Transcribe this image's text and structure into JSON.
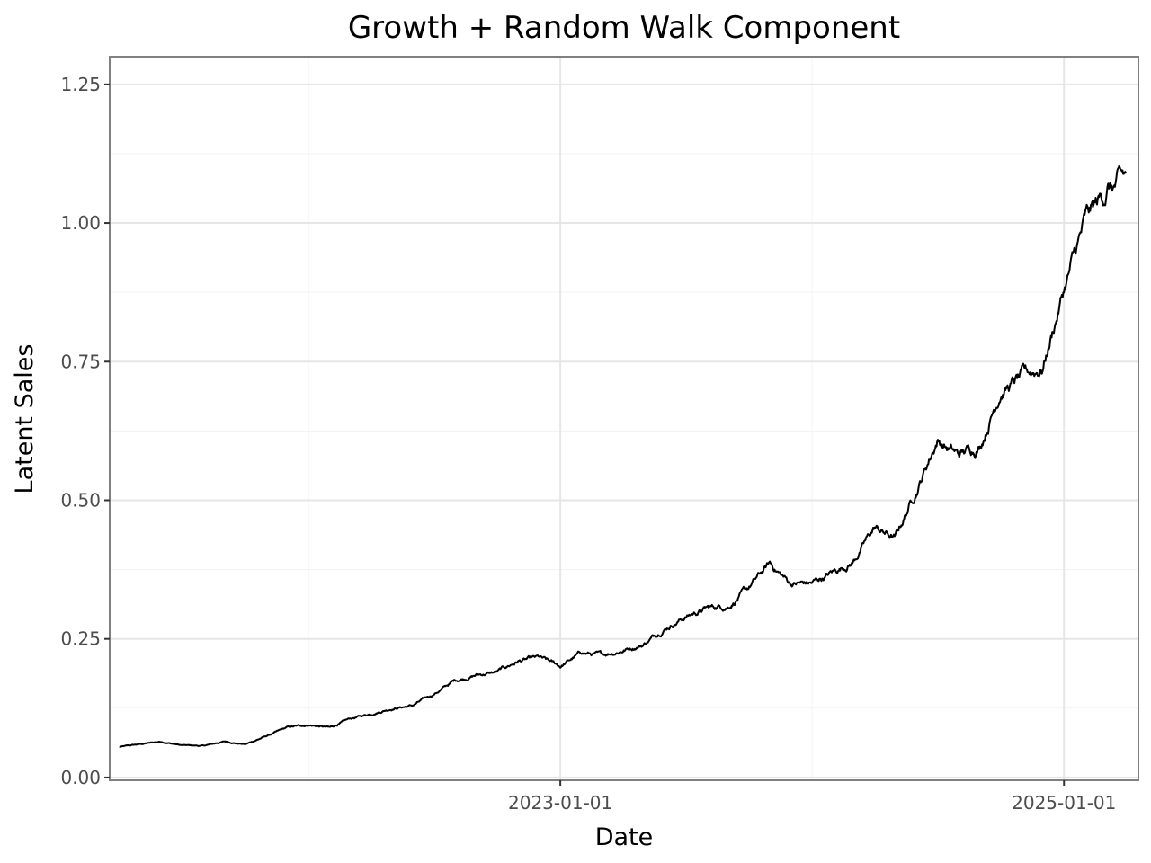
{
  "chart_data": {
    "type": "line",
    "title": "Growth + Random Walk Component",
    "xlabel": "Date",
    "ylabel": "Latent Sales",
    "grid": true,
    "legend": "none",
    "x_range": [
      "2021-03-18",
      "2025-04-19"
    ],
    "x_ticks": [
      "2023-01-01",
      "2025-01-01"
    ],
    "ylim": [
      -0.005,
      1.3
    ],
    "y_ticks": [
      "0.00",
      "0.25",
      "0.50",
      "0.75",
      "1.00",
      "1.25"
    ],
    "line_color": "#000000",
    "series": [
      {
        "x": [
          "2021-04-01",
          "2021-05-01",
          "2021-06-01",
          "2021-07-01",
          "2021-08-01",
          "2021-09-01",
          "2021-10-01",
          "2021-11-01",
          "2021-12-01",
          "2022-01-01",
          "2022-02-01",
          "2022-03-01",
          "2022-04-01",
          "2022-05-01",
          "2022-06-01",
          "2022-07-01",
          "2022-08-01",
          "2022-09-01",
          "2022-10-01",
          "2022-11-01",
          "2022-12-01",
          "2023-01-01",
          "2023-02-01",
          "2023-03-01",
          "2023-04-01",
          "2023-05-01",
          "2023-06-01",
          "2023-07-01",
          "2023-08-01",
          "2023-09-01",
          "2023-10-01",
          "2023-11-01",
          "2023-12-01",
          "2024-01-01",
          "2024-02-01",
          "2024-03-01",
          "2024-04-01",
          "2024-05-01",
          "2024-06-01",
          "2024-07-01",
          "2024-08-01",
          "2024-09-01",
          "2024-10-01",
          "2024-11-01",
          "2024-12-01",
          "2025-01-01",
          "2025-02-01",
          "2025-03-01",
          "2025-03-15",
          "2025-04-01"
        ],
        "values": [
          0.055,
          0.06,
          0.065,
          0.058,
          0.057,
          0.065,
          0.06,
          0.075,
          0.09,
          0.095,
          0.09,
          0.105,
          0.115,
          0.125,
          0.13,
          0.15,
          0.175,
          0.185,
          0.19,
          0.21,
          0.215,
          0.2,
          0.225,
          0.22,
          0.23,
          0.24,
          0.27,
          0.29,
          0.305,
          0.31,
          0.34,
          0.385,
          0.35,
          0.35,
          0.37,
          0.39,
          0.45,
          0.43,
          0.52,
          0.61,
          0.58,
          0.6,
          0.7,
          0.72,
          0.74,
          0.88,
          1.0,
          1.05,
          1.1,
          1.18
        ]
      }
    ]
  }
}
